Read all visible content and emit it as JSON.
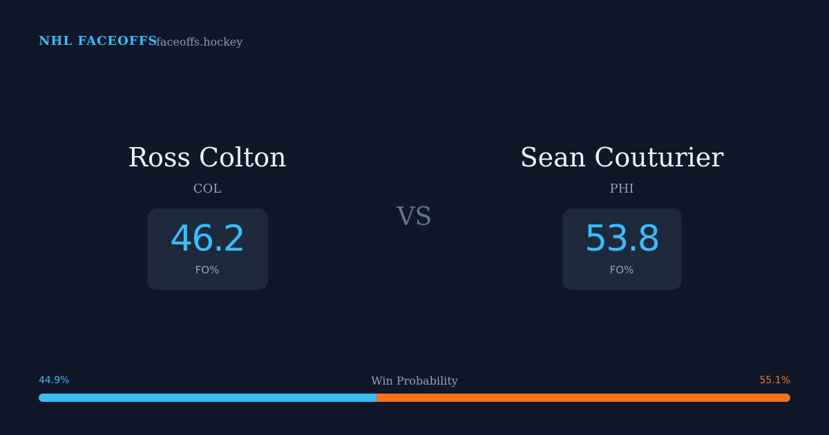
{
  "header": {
    "brand": "NHL FACEOFFS",
    "site": "faceoffs.hockey"
  },
  "players": [
    {
      "name": "Ross Colton",
      "team": "COL",
      "fo_value": 46.2,
      "fo_label": "FO%"
    },
    {
      "name": "Sean Couturier",
      "team": "PHI",
      "fo_value": 53.8,
      "fo_label": "FO%"
    }
  ],
  "versus": "VS",
  "win_probability": {
    "label": "Win Probability",
    "values": [
      44.9,
      55.1
    ],
    "value_labels": [
      "44.9%",
      "55.1%"
    ],
    "colors": [
      "#38bdf8",
      "#f97316"
    ]
  }
}
